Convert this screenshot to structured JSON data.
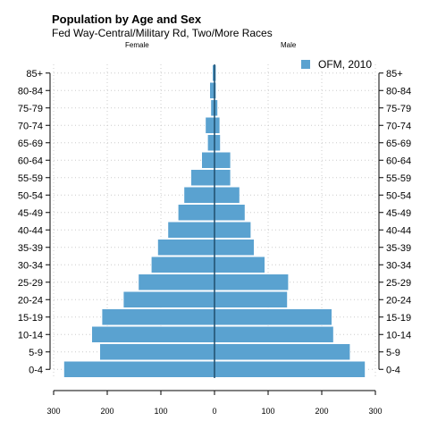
{
  "chart_data": {
    "type": "bar",
    "title": "Population by Age and Sex",
    "subtitle": "Fed Way-Central/Military Rd, Two/More Races",
    "left_label": "Female",
    "right_label": "Male",
    "categories": [
      "0-4",
      "5-9",
      "10-14",
      "15-19",
      "20-24",
      "25-29",
      "30-34",
      "35-39",
      "40-44",
      "45-49",
      "50-54",
      "55-59",
      "60-64",
      "65-69",
      "70-74",
      "75-79",
      "80-84",
      "85+"
    ],
    "series": [
      {
        "name": "OFM, 2010",
        "side": "female",
        "values": [
          281,
          214,
          229,
          210,
          170,
          142,
          118,
          106,
          87,
          68,
          57,
          44,
          24,
          13,
          17,
          7,
          9,
          4
        ]
      },
      {
        "name": "OFM, 2010",
        "side": "male",
        "values": [
          281,
          253,
          222,
          219,
          136,
          138,
          94,
          74,
          68,
          57,
          47,
          30,
          30,
          11,
          10,
          6,
          3,
          3
        ]
      }
    ],
    "legend": "OFM, 2010",
    "legend_position": "top-right",
    "xlim": [
      -300,
      300
    ],
    "xticks": [
      -300,
      -200,
      -100,
      0,
      100,
      200,
      300
    ],
    "xtick_labels": [
      "300",
      "200",
      "100",
      "0",
      "100",
      "200",
      "300"
    ],
    "grid": true,
    "colors": {
      "bar": "#5aa2d0",
      "bar_edge": "#ffffff",
      "center_line": "#1f4e6e",
      "grid": "#cccccc",
      "axis": "#000000"
    }
  }
}
